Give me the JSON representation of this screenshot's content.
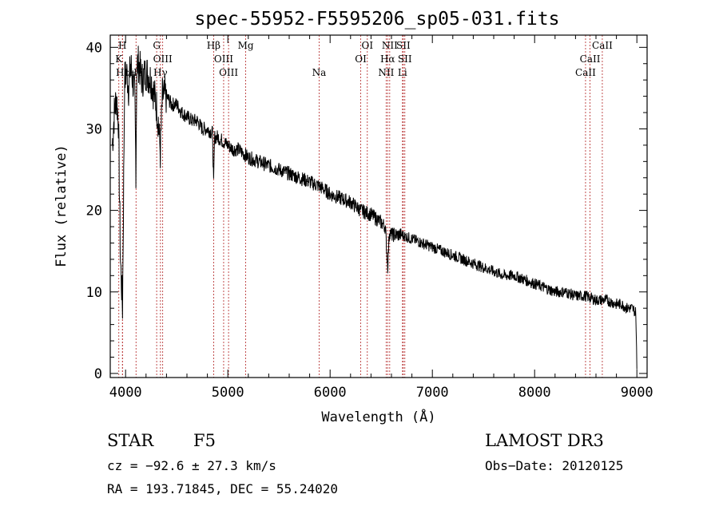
{
  "chart_data": {
    "type": "line",
    "title": "spec-55952-F5595206_sp05-031.fits",
    "xlabel": "Wavelength (Å)",
    "ylabel": "Flux (relative)",
    "xlim": [
      3850,
      9100
    ],
    "ylim": [
      -0.5,
      41.5
    ],
    "xticks": [
      4000,
      5000,
      6000,
      7000,
      8000,
      9000
    ],
    "xtick_labels": [
      "4000",
      "5000",
      "6000",
      "7000",
      "8000",
      "9000"
    ],
    "yticks": [
      0,
      10,
      20,
      30,
      40
    ],
    "ytick_labels": [
      "0",
      "10",
      "20",
      "30",
      "40"
    ],
    "line_color": "#000000",
    "marker_color": "#b22222",
    "series": [
      {
        "name": "flux",
        "x": [
          3870,
          3890,
          3910,
          3930,
          3950,
          3970,
          3990,
          4010,
          4030,
          4050,
          4070,
          4090,
          4101,
          4110,
          4130,
          4160,
          4200,
          4250,
          4300,
          4320,
          4340,
          4360,
          4400,
          4450,
          4500,
          4550,
          4600,
          4650,
          4700,
          4750,
          4800,
          4850,
          4861,
          4870,
          4900,
          4950,
          5000,
          5050,
          5100,
          5150,
          5200,
          5300,
          5400,
          5500,
          5600,
          5700,
          5800,
          5890,
          5950,
          6000,
          6100,
          6200,
          6300,
          6400,
          6450,
          6500,
          6540,
          6563,
          6580,
          6600,
          6650,
          6700,
          6800,
          6900,
          7000,
          7100,
          7200,
          7300,
          7400,
          7500,
          7600,
          7700,
          7800,
          7900,
          8000,
          8100,
          8200,
          8300,
          8400,
          8500,
          8600,
          8700,
          8800,
          8850,
          8900,
          8950,
          8990,
          9000
        ],
        "y": [
          28,
          32,
          34,
          31,
          14,
          8,
          36,
          37,
          35,
          38,
          36,
          34,
          25,
          38,
          38,
          36,
          37,
          36,
          33,
          31,
          27,
          34,
          34,
          33,
          33,
          32,
          31.5,
          31,
          31,
          30,
          30,
          29.5,
          23,
          29,
          29,
          28.5,
          28,
          27.5,
          27.5,
          27,
          26.5,
          26,
          25.5,
          25,
          24.5,
          24,
          23.5,
          23,
          22.5,
          22,
          21.5,
          21,
          20,
          19.5,
          19,
          18.5,
          18,
          13,
          17.5,
          17,
          17,
          17,
          16.5,
          16,
          15.5,
          15,
          14.5,
          14,
          13.5,
          13,
          12.5,
          12,
          12,
          11.5,
          11,
          10.5,
          10,
          10,
          9.5,
          9.5,
          9,
          9,
          8.5,
          8.5,
          8,
          8,
          7.5,
          0.5
        ]
      }
    ],
    "lines": [
      {
        "label": "H",
        "wl": 3969,
        "tier": 1
      },
      {
        "label": "K",
        "wl": 3934,
        "tier": 2
      },
      {
        "label": "Hε",
        "wl": 3970,
        "tier": 3
      },
      {
        "label": "Hδ",
        "wl": 4102,
        "tier": 3
      },
      {
        "label": "Hγ",
        "wl": 4341,
        "tier": 3
      },
      {
        "label": "G",
        "wl": 4304,
        "tier": 1
      },
      {
        "label": "OIII",
        "wl": 4363,
        "tier": 2
      },
      {
        "label": "Hβ",
        "wl": 4861,
        "tier": 1
      },
      {
        "label": "OIII",
        "wl": 4959,
        "tier": 2
      },
      {
        "label": "OIII",
        "wl": 5007,
        "tier": 3
      },
      {
        "label": "Mg",
        "wl": 5175,
        "tier": 1
      },
      {
        "label": "Na",
        "wl": 5893,
        "tier": 3
      },
      {
        "label": "OI",
        "wl": 6300,
        "tier": 2
      },
      {
        "label": "OI",
        "wl": 6364,
        "tier": 1
      },
      {
        "label": "NII",
        "wl": 6548,
        "tier": 3
      },
      {
        "label": "NII",
        "wl": 6583,
        "tier": 1
      },
      {
        "label": "Hα",
        "wl": 6563,
        "tier": 2
      },
      {
        "label": "SII",
        "wl": 6716,
        "tier": 1
      },
      {
        "label": "SII",
        "wl": 6731,
        "tier": 2
      },
      {
        "label": "Li",
        "wl": 6708,
        "tier": 3
      },
      {
        "label": "CaII",
        "wl": 8498,
        "tier": 3
      },
      {
        "label": "CaII",
        "wl": 8542,
        "tier": 2
      },
      {
        "label": "CaII",
        "wl": 8662,
        "tier": 1
      }
    ]
  },
  "info": {
    "obj_class": "STAR",
    "subclass": "F5",
    "survey": "LAMOST DR3",
    "cz": "cz = −92.6 ± 27.3 km/s",
    "obs_date": "Obs−Date: 20120125",
    "coords": "RA = 193.71845, DEC =  55.24020"
  }
}
